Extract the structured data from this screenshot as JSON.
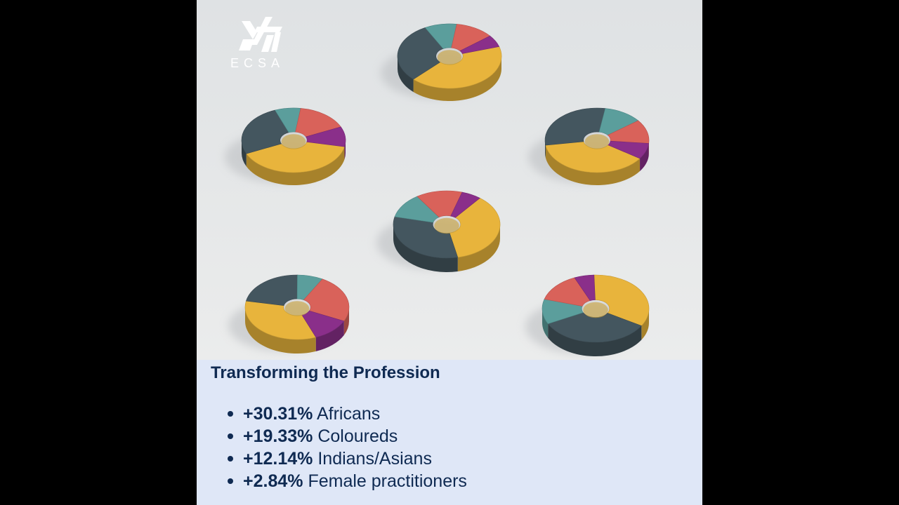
{
  "brand": {
    "logo_name": "ecsa-logo",
    "logo_text": "ECSA"
  },
  "colors": {
    "background": "#000000",
    "scene": "#e6e8ea",
    "panel": "#dfe7f7",
    "text": "#0f2a52",
    "yellow": "#e8b43c",
    "slate": "#44565f",
    "teal": "#5b9e9c",
    "coral": "#d9625a",
    "purple": "#8a2f8a"
  },
  "panel": {
    "title": "Transforming the Profession",
    "stats": [
      {
        "value": "+30.31%",
        "label": "Africans"
      },
      {
        "value": "+19.33%",
        "label": "Coloureds"
      },
      {
        "value": "+12.14%",
        "label": "Indians/Asians"
      },
      {
        "value": "+2.84%",
        "label": "Female practitioners"
      }
    ]
  }
}
